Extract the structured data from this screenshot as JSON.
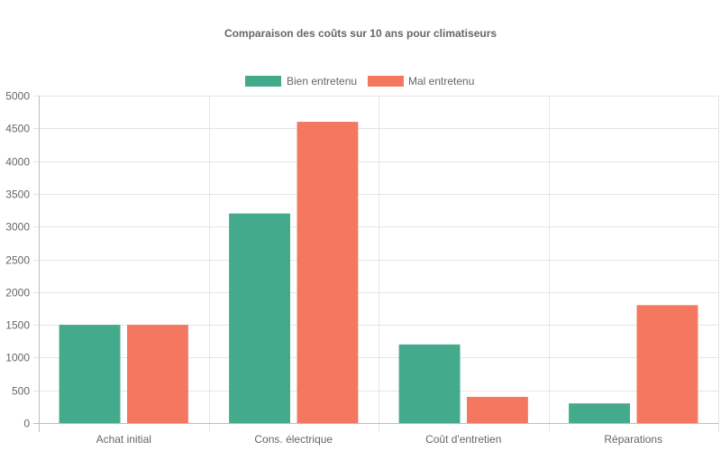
{
  "chart_data": {
    "type": "bar",
    "title": "Comparaison des coûts sur 10 ans pour climatiseurs",
    "categories": [
      "Achat initial",
      "Cons. électrique",
      "Coût d'entretien",
      "Réparations"
    ],
    "series": [
      {
        "name": "Bien entretenu",
        "values": [
          1500,
          3200,
          1200,
          300
        ],
        "color": "#43aa8b"
      },
      {
        "name": "Mal entretenu",
        "values": [
          1500,
          4600,
          400,
          1800
        ],
        "color": "#f47760"
      }
    ],
    "ylim": [
      0,
      5000
    ],
    "yticks": [
      0,
      500,
      1000,
      1500,
      2000,
      2500,
      3000,
      3500,
      4000,
      4500,
      5000
    ],
    "grid": true,
    "legend_position": "top-center",
    "xlabel": "",
    "ylabel": ""
  }
}
